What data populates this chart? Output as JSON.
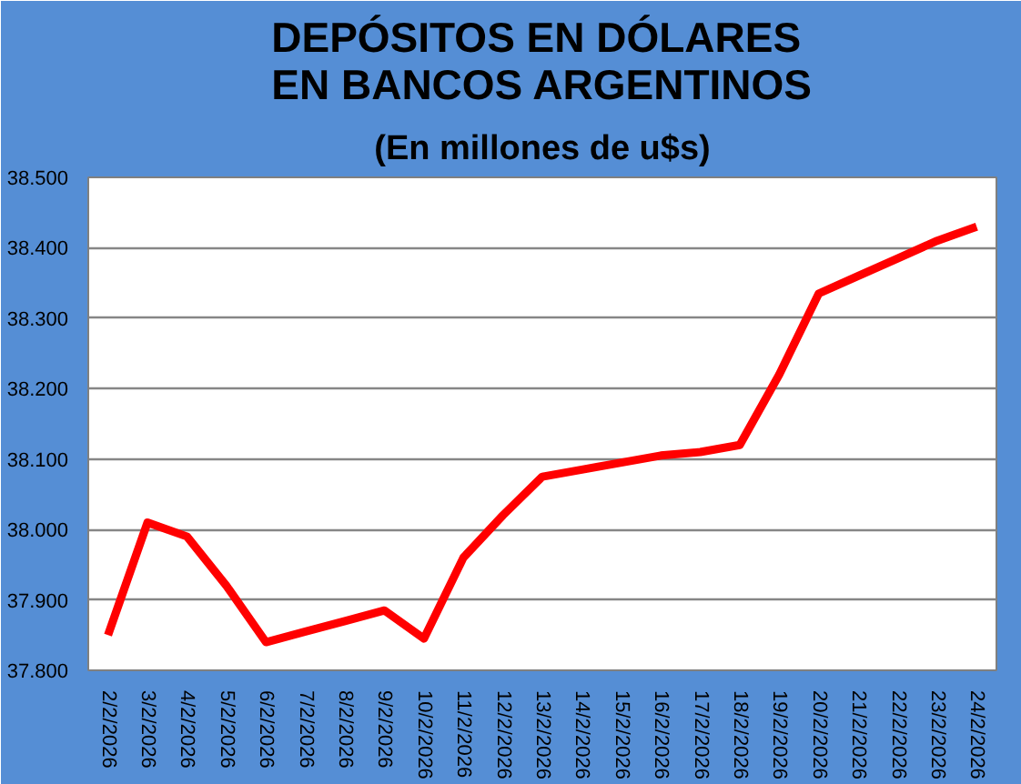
{
  "chart_data": {
    "type": "line",
    "title": "DEPÓSITOS EN DÓLARES\nEN BANCOS ARGENTINOS",
    "subtitle": "(En millones de u$s)",
    "categories": [
      "2/2/2026",
      "3/2/2026",
      "4/2/2026",
      "5/2/2026",
      "6/2/2026",
      "7/2/2026",
      "8/2/2026",
      "9/2/2026",
      "10/2/2026",
      "11/2/2026",
      "12/2/2026",
      "13/2/2026",
      "14/2/2026",
      "15/2/2026",
      "16/2/2026",
      "17/2/2026",
      "18/2/2026",
      "19/2/2026",
      "20/2/2026",
      "21/2/2026",
      "22/2/2026",
      "23/2/2026",
      "24/2/2026"
    ],
    "series": [
      {
        "color": "#ff0000",
        "values": [
          37850,
          38010,
          37990,
          37920,
          37840,
          37855,
          37870,
          37885,
          37845,
          37960,
          38020,
          38075,
          38085,
          38095,
          38105,
          38110,
          38120,
          38220,
          38335,
          38360,
          38385,
          38410,
          38430
        ]
      }
    ],
    "ylim": [
      37800,
      38500
    ],
    "yticks": [
      {
        "value": 37800,
        "label": "37.800"
      },
      {
        "value": 37900,
        "label": "37.900"
      },
      {
        "value": 38000,
        "label": "38.000"
      },
      {
        "value": 38100,
        "label": "38.100"
      },
      {
        "value": 38200,
        "label": "38.200"
      },
      {
        "value": 38300,
        "label": "38.300"
      },
      {
        "value": 38400,
        "label": "38.400"
      },
      {
        "value": 38500,
        "label": "38.500"
      }
    ],
    "grid": "y",
    "marker": "none",
    "line_style": "solid"
  }
}
